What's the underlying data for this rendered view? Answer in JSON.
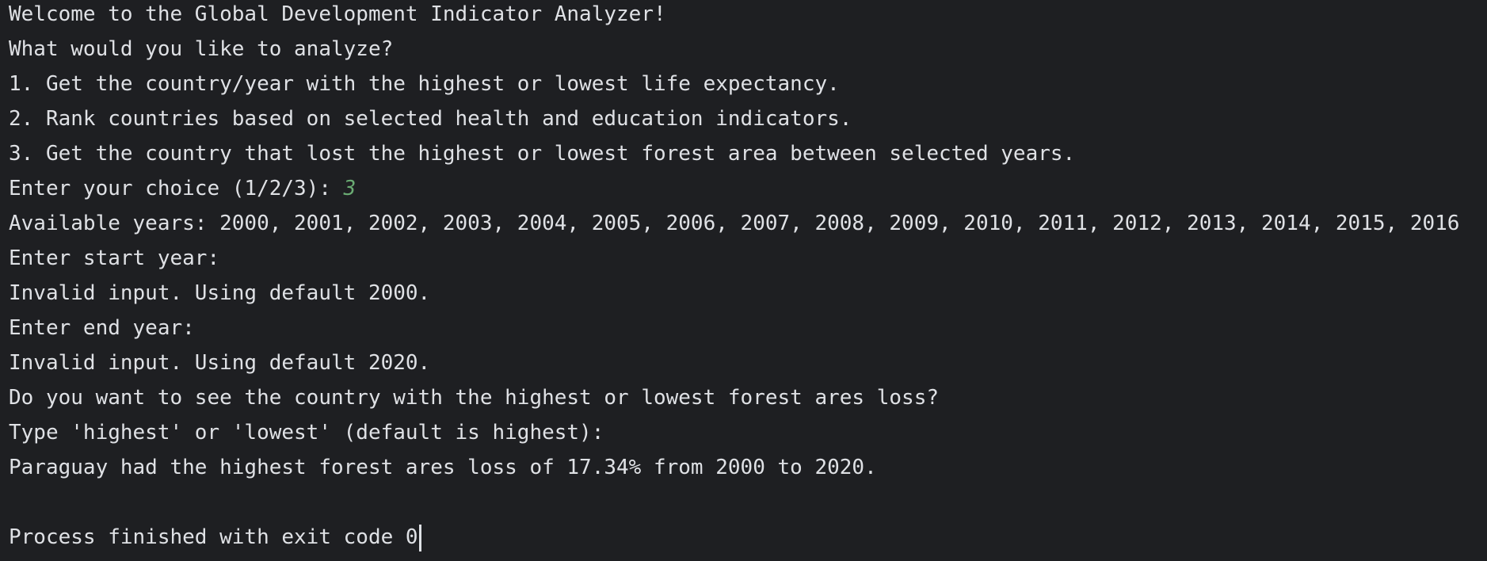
{
  "console": {
    "lines": [
      "Welcome to the Global Development Indicator Analyzer!",
      "What would you like to analyze?",
      "1. Get the country/year with the highest or lowest life expectancy.",
      "2. Rank countries based on selected health and education indicators.",
      "3. Get the country that lost the highest or lowest forest area between selected years.",
      "Enter your choice (1/2/3): ",
      "Available years: 2000, 2001, 2002, 2003, 2004, 2005, 2006, 2007, 2008, 2009, 2010, 2011, 2012, 2013, 2014, 2015, 2016",
      "Enter start year:",
      "Invalid input. Using default 2000.",
      "Enter end year:",
      "Invalid input. Using default 2020.",
      "Do you want to see the country with the highest or lowest forest ares loss?",
      "Type 'highest' or 'lowest' (default is highest):",
      "Paraguay had the highest forest ares loss of 17.34% from 2000 to 2020.",
      "",
      "Process finished with exit code 0"
    ],
    "choice_input": "3"
  },
  "colors": {
    "background": "#1e1f22",
    "text": "#dfe1e5",
    "user_input": "#6aab73"
  }
}
